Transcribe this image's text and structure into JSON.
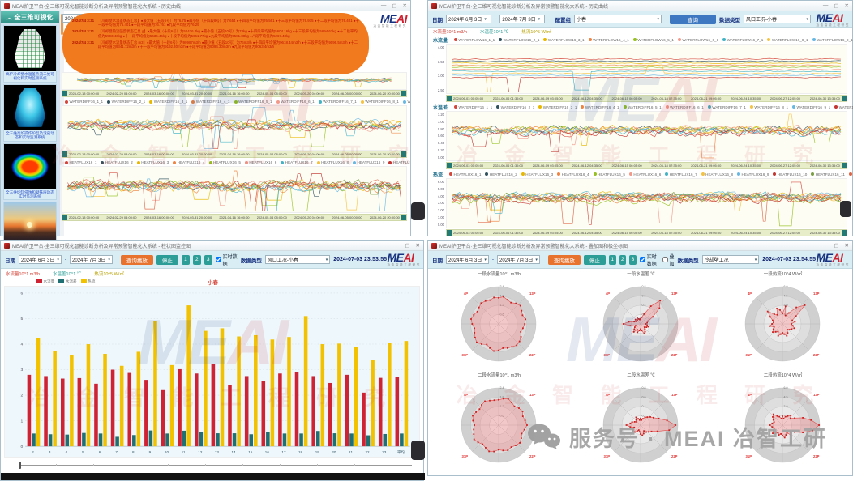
{
  "icons": {
    "minimize": "—",
    "maximize": "▢",
    "close": "✕",
    "dropdown": "▾",
    "collapse": "︿",
    "prev": "◀",
    "next": "▶"
  },
  "brand": {
    "me": "ME",
    "ai": "AI",
    "sub": "冶金智能工程研究"
  },
  "watermark": {
    "latin_p1": "ME",
    "latin_p2": "AI",
    "cn": "冶 金 智 能 工 程 研 究",
    "service": "服务号 · MEAI 冶智工研"
  },
  "titles": {
    "tl": "MEAI炉卫平台·全三维可视化智能诊断分析及异常预警智能化大系统 - 历史曲线",
    "tr": "MEAI炉卫平台·全三维可视化智能诊断分析及异常预警智能化大系统 - 历史曲线",
    "bl": "MEAI炉卫平台·全三维可视化智能诊断分析及异常预警智能化大系统 - 柱状图监控图",
    "br": "MEAI炉卫平台·全三维可视化智能诊断分析及异常预警智能化大系统 - 叠加图和极坐标图"
  },
  "sidebar": {
    "header": "全三维可视化",
    "items": [
      {
        "caption": "高炉冷却壁水温差热流二维可视化和实时监测系统"
      },
      {
        "caption": "全三维高炉操作炉型及渣皮动态和实时监测系统"
      },
      {
        "caption": "全三维炉缸侵蚀和凝铁层动态实时监测系统"
      },
      {
        "caption": ""
      }
    ]
  },
  "annotation": {
    "rows": [
      {
        "time": "2024/7/4 3:31",
        "text": "【冷却壁水温差状态汇总】●最大值（五段6号）为76.75 ●最小值（十四段8号）为7.654 ●十四段平均值为76.561 ●十三段平均值为76.975 ●十二段平均值为76.401 ●十一段平均值为76.401 ●十段平均值为76.761 ●九段平均值为76.29"
      },
      {
        "time": "2024/7/4 3:31",
        "text": "【冷却壁热流强度状态汇总 g】●最大值（十段6号）为52426.4kg ●最小值（五段10号）为78kg ●十四段平均值为5604.16kg ●十三段平均值为5694.67kg ●十二段平均值为5593.43kg ●十一段平均值为5636.46kg ●十段平均值为5661.77kg ●九段平均值为5581.88kg ●八段平均值为5267.48kg"
      },
      {
        "time": "2024/7/4 3:31",
        "text": "【冷却壁水流量状态汇总 m3】●最大值（十段6号）为90987m3/h ●最小值（五段10号）为76m3/h ●十四段平均值为9618.44m3/h ●十三段平均值为9096.5m3/h ●十二段平均值为9341.72m3/h ●十一段平均值为9192.30m3/h ●十段平均值为9094.30m3/h ●九段平均值为9063.4m3/h"
      },
      {
        "time": "2024/7/4 3:31",
        "text": "【风口回旋区状态汇总】●最大值（十段10号）为9094.5m3/h ●最小值（五段10号）为7624m3/h ●十一段平均值为9107.37m3/h ●十段平均值为9135.8m3/h ●九段平均值为9063.4m3/h ●八段平均值为7081.1m3/h"
      }
    ]
  },
  "toolbar": {
    "date_label": "日期",
    "date_from": "2024年 6月 3日",
    "date_to": "2024年 7月 3日",
    "sep": "-",
    "config_label": "配置组",
    "config_value": "小春",
    "query": "查询",
    "query_play": "查询播放",
    "stop": "停止",
    "pages": [
      "1",
      "2",
      "3"
    ],
    "realtime": "实时数据",
    "overlay": "叠加",
    "dtype_label": "数据类型",
    "dtype_tr": "风口工况-小春",
    "dtype_bl": "风口工况-小春",
    "dtype_br": "冷却壁工况",
    "ts_bl": "2024-07-03 23:53:55",
    "ts_br": "2024-07-03 23:54:55",
    "tl_date_fragment": "2024年 6月 3日"
  },
  "links": {
    "flow": "水流量10^1 m3/h",
    "diff": "水温差10^1 ℃",
    "heat": "热流10^5 W/㎡"
  },
  "colors": {
    "palette": [
      "#d5453a",
      "#31515e",
      "#e8b800",
      "#ef8440",
      "#96c11f",
      "#f2998a",
      "#42b3c5",
      "#f5c342",
      "#67b7e3",
      "#c23531",
      "#7a9e43",
      "#e06343"
    ],
    "radar_fill": "rgba(244,112,112,0.33)",
    "radar_line": "#e24c4c",
    "radar_marker": "#cc2020"
  },
  "chart_data": [
    {
      "panel": "top-left-history",
      "type": "line",
      "x_labels": [
        "2024-02-13 00:00:00",
        "2024-02-29 04:00:00",
        "2024-03-16 00:00:00",
        "2024-03-31 20:00:00",
        "2024-04-16 16:00:00",
        "2024-05-04 08:00:00",
        "2024-05-20 04:00:00",
        "2024-06-05 00:00:00",
        "2024-06-20 20:00:00"
      ],
      "sections": [
        {
          "legend": [
            "WATERDIFF16_1_1",
            "WATERDIFF16_2_1",
            "WATERDIFF16_3_1",
            "WATERDIFF16_4_1",
            "WATERDIFF16_5_1",
            "WATERDIFF16_6_1",
            "WATERDIFF16_7_1",
            "WATERDIFF16_8_1",
            "WATERDIFF16_9_1",
            "WATERDIFF16_10_1"
          ],
          "pager": "1/3"
        },
        {
          "legend": [
            "HEATFLUX16_1",
            "HEATFLUX16_2",
            "HEATFLUX16_3",
            "HEATFLUX16_4",
            "HEATFLUX16_5",
            "HEATFLUX16_6",
            "HEATFLUX16_7",
            "HEATFLUX16_8",
            "HEATFLUX16_9",
            "HEATFLUX16_10",
            "HEATFLUX16_11"
          ],
          "pager": "1/2"
        }
      ]
    },
    {
      "panel": "top-right-history",
      "type": "line",
      "x_labels": [
        "2024-06-03 00:05:00",
        "2024-06-06 01:35:00",
        "2024-06-09 03:05:00",
        "2024-06-12 04:35:00",
        "2024-06-15 06:05:00",
        "2024-06-18 07:35:00",
        "2024-06-21 09:05:00",
        "2024-06-24 10:35:00",
        "2024-06-27 12:05:00",
        "2024-06-30 13:35:00"
      ],
      "sections": [
        {
          "name": "水流量",
          "y_ticks": [
            "4.00",
            "3.50",
            "3.00",
            "2.50"
          ],
          "pager": "1/3",
          "legend": [
            "WATERFLOW16_1_1",
            "WATERFLOW16_2_1",
            "WATERFLOW16_3_1",
            "WATERFLOW16_4_1",
            "WATERFLOW16_5_1",
            "WATERFLOW16_6_1",
            "WATERFLOW16_7_1",
            "WATERFLOW16_8_1",
            "WATERFLOW16_9_1",
            "WATERI"
          ]
        },
        {
          "name": "水温差",
          "y_ticks": [
            "1.20",
            "1.00",
            "0.80",
            "0.60",
            "0.40",
            "0.20",
            "0.00"
          ],
          "pager": "1/3",
          "legend": [
            "WATERDIFF16_1_1",
            "WATERDIFF16_2_1",
            "WATERDIFF16_3_1",
            "WATERDIFF16_4_1",
            "WATERDIFF16_5_1",
            "WATERDIFF16_6_1",
            "WATERDIFF16_7_1",
            "WATERDIFF16_8_1",
            "WATERDIFF16_9_1",
            "WATERDIFF16_10_1"
          ]
        },
        {
          "name": "热流",
          "y_ticks": [
            "6.00",
            "5.00",
            "4.00",
            "3.00",
            "2.00",
            "1.00",
            "0.00"
          ],
          "pager": "1/2",
          "legend": [
            "HEATFLUX16_1",
            "HEATFLUX16_2",
            "HEATFLUX16_3",
            "HEATFLUX16_4",
            "HEATFLUX16_5",
            "HEATFLUX16_6",
            "HEATFLUX16_7",
            "HEATFLUX16_8",
            "HEATFLUX16_9",
            "HEATFLUX16_10",
            "HEATFLUX16_11",
            "HEATF"
          ]
        }
      ]
    },
    {
      "panel": "bottom-left-bars",
      "type": "bar",
      "title": "小春",
      "categories": [
        "2",
        "3",
        "4",
        "5",
        "6",
        "7",
        "8",
        "9",
        "10",
        "11",
        "12",
        "13",
        "14",
        "15",
        "16",
        "17",
        "18",
        "19",
        "20",
        "21",
        "22",
        "23",
        "平均"
      ],
      "y_ticks": [
        "6",
        "5",
        "4",
        "3",
        "2",
        "1",
        "0"
      ],
      "ylim": [
        0,
        6
      ],
      "series": [
        {
          "name": "水流量",
          "color": "#cf2233",
          "values": [
            2.8,
            2.75,
            2.65,
            2.67,
            2.45,
            3.0,
            2.87,
            2.6,
            2.2,
            3.02,
            2.85,
            3.22,
            2.4,
            2.75,
            2.55,
            2.85,
            2.92,
            2.75,
            2.48,
            2.8,
            2.1,
            2.68,
            2.72
          ]
        },
        {
          "name": "水温差",
          "color": "#1f6f73",
          "values": [
            0.5,
            0.47,
            0.46,
            0.52,
            0.5,
            0.37,
            0.44,
            0.62,
            0.5,
            0.61,
            0.55,
            0.51,
            0.51,
            0.47,
            0.57,
            0.5,
            0.5,
            0.6,
            0.51,
            0.5,
            0.43,
            0.48,
            0.5
          ]
        },
        {
          "name": "热流",
          "color": "#f2c200",
          "values": [
            4.25,
            3.72,
            3.56,
            4.0,
            3.62,
            3.15,
            3.7,
            4.92,
            3.18,
            5.52,
            4.52,
            4.62,
            4.3,
            4.35,
            4.18,
            4.28,
            5.1,
            4.0,
            4.02,
            3.9,
            3.38,
            4.05,
            4.12
          ]
        }
      ]
    },
    {
      "panel": "bottom-right-radars",
      "type": "radar",
      "corner_labels": [
        "4P",
        "13P",
        "22P",
        "31P"
      ],
      "charts": [
        {
          "title": "一段水流量10^1 m3/h",
          "ticks": [
            "0.6",
            "1.2",
            "1.8",
            "2.4"
          ],
          "values": [
            0.7,
            0.74,
            0.69,
            0.66,
            0.72,
            0.76,
            0.71,
            0.68,
            0.73,
            0.7,
            0.66,
            0.63,
            0.69,
            0.73,
            0.75,
            0.71,
            0.69,
            0.66,
            0.71,
            0.74,
            0.69,
            0.64,
            0.71,
            0.77,
            0.73,
            0.69,
            0.66,
            0.71,
            0.75,
            0.71,
            0.66,
            0.69,
            0.73,
            0.71,
            0.68,
            0.72
          ]
        },
        {
          "title": "一段水温差 ℃",
          "ticks": [
            "0.2",
            "0.4",
            "0.6",
            "0.8"
          ],
          "values": [
            0.14,
            0.18,
            0.28,
            0.55,
            0.82,
            0.66,
            0.38,
            0.22,
            0.18,
            0.14,
            0.18,
            0.22,
            0.18,
            0.14,
            0.18,
            0.24,
            0.28,
            0.18,
            0.14,
            0.18,
            0.24,
            0.18,
            0.28,
            0.22,
            0.18,
            0.14,
            0.28,
            0.46,
            0.32,
            0.18,
            0.14,
            0.18,
            0.14,
            0.18,
            0.14,
            0.12
          ]
        },
        {
          "title": "一段热流10^4 W/㎡",
          "ticks": [
            "1.5",
            "3.0",
            "4.5",
            "6.0"
          ],
          "values": [
            0.28,
            0.48,
            0.24,
            0.34,
            0.58,
            0.78,
            0.42,
            0.28,
            0.34,
            0.24,
            0.28,
            0.34,
            0.28,
            0.24,
            0.2,
            0.28,
            0.34,
            0.28,
            0.24,
            0.28,
            0.34,
            0.24,
            0.28,
            0.34,
            0.28,
            0.24,
            0.34,
            0.28,
            0.24,
            0.28,
            0.38,
            0.52,
            0.34,
            0.28,
            0.44,
            0.38
          ]
        },
        {
          "title": "二段水流量10^1 m3/h",
          "ticks": [
            "0.6",
            "1.2",
            "1.8",
            "2.4"
          ],
          "values": [
            0.68,
            0.72,
            0.75,
            0.7,
            0.66,
            0.71,
            0.74,
            0.69,
            0.72,
            0.76,
            0.7,
            0.66,
            0.7,
            0.74,
            0.71,
            0.68,
            0.72,
            0.69,
            0.66,
            0.72,
            0.75,
            0.7,
            0.67,
            0.72,
            0.76,
            0.71,
            0.68,
            0.65,
            0.7,
            0.74,
            0.7,
            0.67,
            0.71,
            0.74,
            0.7,
            0.68
          ]
        },
        {
          "title": "二段水温差 ℃",
          "ticks": [
            "0.2",
            "0.4",
            "0.6",
            "0.8"
          ],
          "values": [
            0.18,
            0.14,
            0.18,
            0.24,
            0.28,
            0.34,
            0.4,
            0.52,
            0.72,
            0.94,
            0.78,
            0.48,
            0.34,
            0.28,
            0.24,
            0.18,
            0.24,
            0.28,
            0.24,
            0.18,
            0.14,
            0.18,
            0.24,
            0.28,
            0.24,
            0.18,
            0.28,
            0.38,
            0.28,
            0.24,
            0.18,
            0.14,
            0.18,
            0.24,
            0.18,
            0.14
          ]
        },
        {
          "title": "二段热流10^4 W/㎡",
          "ticks": [
            "1.5",
            "3.0",
            "4.5",
            "6.0"
          ],
          "values": [
            0.24,
            0.18,
            0.24,
            0.28,
            0.34,
            0.28,
            0.38,
            0.58,
            0.78,
            0.98,
            0.82,
            0.58,
            0.38,
            0.28,
            0.34,
            0.24,
            0.28,
            0.34,
            0.28,
            0.24,
            0.28,
            0.24,
            0.28,
            0.34,
            0.28,
            0.24,
            0.28,
            0.34,
            0.28,
            0.24,
            0.28,
            0.34,
            0.38,
            0.28,
            0.24,
            0.18
          ]
        }
      ]
    }
  ]
}
